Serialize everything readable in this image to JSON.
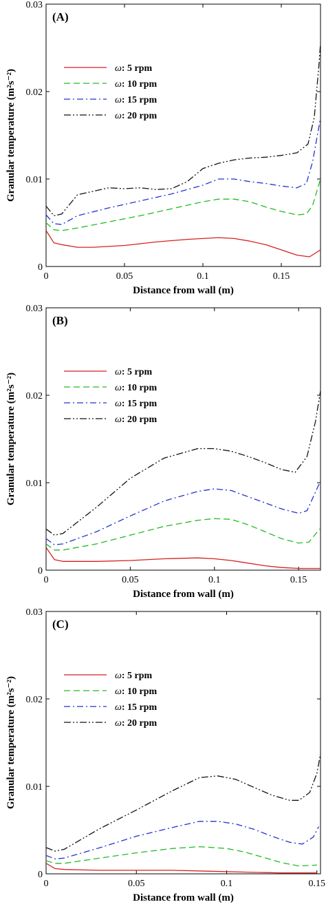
{
  "chart_data": [
    {
      "type": "line",
      "panel_label": "(A)",
      "xlabel": "Distance from wall (m)",
      "ylabel": "Granular temperature (m²s⁻²)",
      "xlim": [
        0,
        0.175
      ],
      "ylim": [
        0,
        0.03
      ],
      "x_ticks": [
        0,
        0.05,
        0.1,
        0.15
      ],
      "x_tick_labels": [
        "0",
        "0.05",
        "0.1",
        "0.15"
      ],
      "y_ticks": [
        0,
        0.01,
        0.02,
        0.03
      ],
      "y_tick_labels": [
        "0",
        "0.01",
        "0.02",
        "0.03"
      ],
      "legend_position": "upper-left",
      "series": [
        {
          "name": "ω: 5 rpm",
          "prefix": "ω",
          "suffix": ": 5 rpm",
          "color": "#d62020",
          "dash": "solid",
          "points": [
            [
              0,
              0.0041
            ],
            [
              0.005,
              0.0027
            ],
            [
              0.01,
              0.0025
            ],
            [
              0.02,
              0.0022
            ],
            [
              0.03,
              0.0022
            ],
            [
              0.05,
              0.0024
            ],
            [
              0.07,
              0.0028
            ],
            [
              0.09,
              0.0031
            ],
            [
              0.11,
              0.0033
            ],
            [
              0.12,
              0.0032
            ],
            [
              0.13,
              0.0029
            ],
            [
              0.14,
              0.0025
            ],
            [
              0.15,
              0.0019
            ],
            [
              0.16,
              0.0013
            ],
            [
              0.168,
              0.0011
            ],
            [
              0.175,
              0.0019
            ]
          ]
        },
        {
          "name": "ω: 10 rpm",
          "prefix": "ω",
          "suffix": ": 10 rpm",
          "color": "#22bb22",
          "dash": "dash",
          "points": [
            [
              0,
              0.005
            ],
            [
              0.005,
              0.0042
            ],
            [
              0.01,
              0.0041
            ],
            [
              0.02,
              0.0044
            ],
            [
              0.04,
              0.0051
            ],
            [
              0.06,
              0.0058
            ],
            [
              0.08,
              0.0066
            ],
            [
              0.1,
              0.0074
            ],
            [
              0.11,
              0.0077
            ],
            [
              0.12,
              0.0077
            ],
            [
              0.13,
              0.0074
            ],
            [
              0.14,
              0.0068
            ],
            [
              0.15,
              0.0063
            ],
            [
              0.16,
              0.0059
            ],
            [
              0.166,
              0.006
            ],
            [
              0.17,
              0.007
            ],
            [
              0.175,
              0.01
            ]
          ]
        },
        {
          "name": "ω: 15 rpm",
          "prefix": "ω",
          "suffix": ": 15 rpm",
          "color": "#2233cc",
          "dash": "dashdot",
          "points": [
            [
              0,
              0.0059
            ],
            [
              0.005,
              0.0049
            ],
            [
              0.01,
              0.0048
            ],
            [
              0.02,
              0.0058
            ],
            [
              0.04,
              0.0067
            ],
            [
              0.06,
              0.0075
            ],
            [
              0.08,
              0.0083
            ],
            [
              0.1,
              0.0093
            ],
            [
              0.11,
              0.01
            ],
            [
              0.12,
              0.01
            ],
            [
              0.13,
              0.0097
            ],
            [
              0.14,
              0.0095
            ],
            [
              0.15,
              0.0092
            ],
            [
              0.16,
              0.009
            ],
            [
              0.166,
              0.0095
            ],
            [
              0.17,
              0.012
            ],
            [
              0.175,
              0.017
            ]
          ]
        },
        {
          "name": "ω: 20 rpm",
          "prefix": "ω",
          "suffix": ": 20 rpm",
          "color": "#111111",
          "dash": "dashdotdot",
          "points": [
            [
              0,
              0.0069
            ],
            [
              0.005,
              0.0058
            ],
            [
              0.01,
              0.006
            ],
            [
              0.02,
              0.0082
            ],
            [
              0.03,
              0.0086
            ],
            [
              0.04,
              0.009
            ],
            [
              0.05,
              0.0089
            ],
            [
              0.06,
              0.009
            ],
            [
              0.07,
              0.0088
            ],
            [
              0.08,
              0.0089
            ],
            [
              0.09,
              0.0097
            ],
            [
              0.1,
              0.0112
            ],
            [
              0.11,
              0.0118
            ],
            [
              0.12,
              0.0122
            ],
            [
              0.13,
              0.0124
            ],
            [
              0.14,
              0.0125
            ],
            [
              0.15,
              0.0127
            ],
            [
              0.16,
              0.013
            ],
            [
              0.167,
              0.014
            ],
            [
              0.171,
              0.017
            ],
            [
              0.174,
              0.023
            ],
            [
              0.176,
              0.028
            ]
          ]
        }
      ]
    },
    {
      "type": "line",
      "panel_label": "(B)",
      "xlabel": "Distance from wall (m)",
      "ylabel": "Granular temperature (m²s⁻²)",
      "xlim": [
        0,
        0.163
      ],
      "ylim": [
        0,
        0.03
      ],
      "x_ticks": [
        0,
        0.05,
        0.1,
        0.15
      ],
      "x_tick_labels": [
        "0",
        "0.05",
        "0.1",
        "0.15"
      ],
      "y_ticks": [
        0,
        0.01,
        0.02,
        0.03
      ],
      "y_tick_labels": [
        "0",
        "0.01",
        "0.02",
        "0.03"
      ],
      "legend_position": "upper-left",
      "series": [
        {
          "name": "ω: 5 rpm",
          "prefix": "ω",
          "suffix": ": 5 rpm",
          "color": "#d62020",
          "dash": "solid",
          "points": [
            [
              0,
              0.0026
            ],
            [
              0.005,
              0.0012
            ],
            [
              0.01,
              0.001
            ],
            [
              0.03,
              0.001
            ],
            [
              0.05,
              0.0011
            ],
            [
              0.07,
              0.0013
            ],
            [
              0.09,
              0.0014
            ],
            [
              0.1,
              0.0013
            ],
            [
              0.11,
              0.0011
            ],
            [
              0.12,
              0.0008
            ],
            [
              0.13,
              0.0005
            ],
            [
              0.14,
              0.0003
            ],
            [
              0.15,
              0.0002
            ],
            [
              0.163,
              0.0002
            ]
          ]
        },
        {
          "name": "ω: 10 rpm",
          "prefix": "ω",
          "suffix": ": 10 rpm",
          "color": "#22bb22",
          "dash": "dash",
          "points": [
            [
              0,
              0.003
            ],
            [
              0.005,
              0.0023
            ],
            [
              0.01,
              0.0023
            ],
            [
              0.03,
              0.003
            ],
            [
              0.05,
              0.004
            ],
            [
              0.07,
              0.005
            ],
            [
              0.09,
              0.0057
            ],
            [
              0.1,
              0.0059
            ],
            [
              0.11,
              0.0058
            ],
            [
              0.12,
              0.0052
            ],
            [
              0.13,
              0.0044
            ],
            [
              0.14,
              0.0036
            ],
            [
              0.15,
              0.0031
            ],
            [
              0.156,
              0.0032
            ],
            [
              0.163,
              0.0048
            ]
          ]
        },
        {
          "name": "ω: 15 rpm",
          "prefix": "ω",
          "suffix": ": 15 rpm",
          "color": "#2233cc",
          "dash": "dashdot",
          "points": [
            [
              0,
              0.0036
            ],
            [
              0.005,
              0.0029
            ],
            [
              0.01,
              0.003
            ],
            [
              0.03,
              0.0044
            ],
            [
              0.05,
              0.0062
            ],
            [
              0.07,
              0.0079
            ],
            [
              0.09,
              0.009
            ],
            [
              0.1,
              0.0093
            ],
            [
              0.11,
              0.0091
            ],
            [
              0.12,
              0.0084
            ],
            [
              0.13,
              0.0077
            ],
            [
              0.14,
              0.007
            ],
            [
              0.15,
              0.0065
            ],
            [
              0.155,
              0.0068
            ],
            [
              0.163,
              0.0102
            ]
          ]
        },
        {
          "name": "ω: 20 rpm",
          "prefix": "ω",
          "suffix": ": 20 rpm",
          "color": "#111111",
          "dash": "dashdotdot",
          "points": [
            [
              0,
              0.0047
            ],
            [
              0.005,
              0.004
            ],
            [
              0.01,
              0.0042
            ],
            [
              0.03,
              0.0072
            ],
            [
              0.05,
              0.0105
            ],
            [
              0.07,
              0.0128
            ],
            [
              0.09,
              0.0139
            ],
            [
              0.1,
              0.0139
            ],
            [
              0.11,
              0.0136
            ],
            [
              0.12,
              0.013
            ],
            [
              0.13,
              0.0123
            ],
            [
              0.14,
              0.0115
            ],
            [
              0.148,
              0.0112
            ],
            [
              0.155,
              0.013
            ],
            [
              0.16,
              0.017
            ],
            [
              0.163,
              0.0205
            ]
          ]
        }
      ]
    },
    {
      "type": "line",
      "panel_label": "(C)",
      "xlabel": "Distance from wall (m)",
      "ylabel": "Granular temperature (m²s⁻²)",
      "xlim": [
        0,
        0.152
      ],
      "ylim": [
        0,
        0.03
      ],
      "x_ticks": [
        0,
        0.05,
        0.1,
        0.15
      ],
      "x_tick_labels": [
        "0",
        "0.05",
        "0.1",
        "0.15"
      ],
      "y_ticks": [
        0,
        0.01,
        0.02,
        0.03
      ],
      "y_tick_labels": [
        "0",
        "0.01",
        "0.02",
        "0.03"
      ],
      "legend_position": "upper-left",
      "series": [
        {
          "name": "ω: 5 rpm",
          "prefix": "ω",
          "suffix": ": 5 rpm",
          "color": "#d62020",
          "dash": "solid",
          "points": [
            [
              0,
              0.0012
            ],
            [
              0.005,
              0.0006
            ],
            [
              0.01,
              0.0005
            ],
            [
              0.03,
              0.0004
            ],
            [
              0.05,
              0.0004
            ],
            [
              0.07,
              0.0004
            ],
            [
              0.09,
              0.0003
            ],
            [
              0.11,
              0.0002
            ],
            [
              0.13,
              0.0001
            ],
            [
              0.15,
              0.0001
            ]
          ]
        },
        {
          "name": "ω: 10 rpm",
          "prefix": "ω",
          "suffix": ": 10 rpm",
          "color": "#22bb22",
          "dash": "dash",
          "points": [
            [
              0,
              0.0015
            ],
            [
              0.005,
              0.0012
            ],
            [
              0.01,
              0.0012
            ],
            [
              0.03,
              0.0018
            ],
            [
              0.05,
              0.0024
            ],
            [
              0.07,
              0.0029
            ],
            [
              0.085,
              0.0031
            ],
            [
              0.1,
              0.0029
            ],
            [
              0.11,
              0.0025
            ],
            [
              0.12,
              0.0019
            ],
            [
              0.13,
              0.0013
            ],
            [
              0.14,
              0.0009
            ],
            [
              0.15,
              0.001
            ]
          ]
        },
        {
          "name": "ω: 15 rpm",
          "prefix": "ω",
          "suffix": ": 15 rpm",
          "color": "#2233cc",
          "dash": "dashdot",
          "points": [
            [
              0,
              0.0021
            ],
            [
              0.005,
              0.0017
            ],
            [
              0.01,
              0.0018
            ],
            [
              0.03,
              0.003
            ],
            [
              0.05,
              0.0043
            ],
            [
              0.07,
              0.0053
            ],
            [
              0.085,
              0.006
            ],
            [
              0.095,
              0.006
            ],
            [
              0.105,
              0.0057
            ],
            [
              0.115,
              0.0051
            ],
            [
              0.125,
              0.0043
            ],
            [
              0.135,
              0.0036
            ],
            [
              0.142,
              0.0034
            ],
            [
              0.148,
              0.0042
            ],
            [
              0.151,
              0.0054
            ]
          ]
        },
        {
          "name": "ω: 20 rpm",
          "prefix": "ω",
          "suffix": ": 20 rpm",
          "color": "#111111",
          "dash": "dashdotdot",
          "points": [
            [
              0,
              0.003
            ],
            [
              0.005,
              0.0026
            ],
            [
              0.01,
              0.0028
            ],
            [
              0.03,
              0.0052
            ],
            [
              0.05,
              0.0073
            ],
            [
              0.07,
              0.0095
            ],
            [
              0.085,
              0.011
            ],
            [
              0.095,
              0.0112
            ],
            [
              0.105,
              0.0108
            ],
            [
              0.115,
              0.0099
            ],
            [
              0.125,
              0.009
            ],
            [
              0.135,
              0.0084
            ],
            [
              0.14,
              0.0084
            ],
            [
              0.146,
              0.0093
            ],
            [
              0.15,
              0.0115
            ],
            [
              0.152,
              0.0137
            ]
          ]
        }
      ]
    }
  ]
}
